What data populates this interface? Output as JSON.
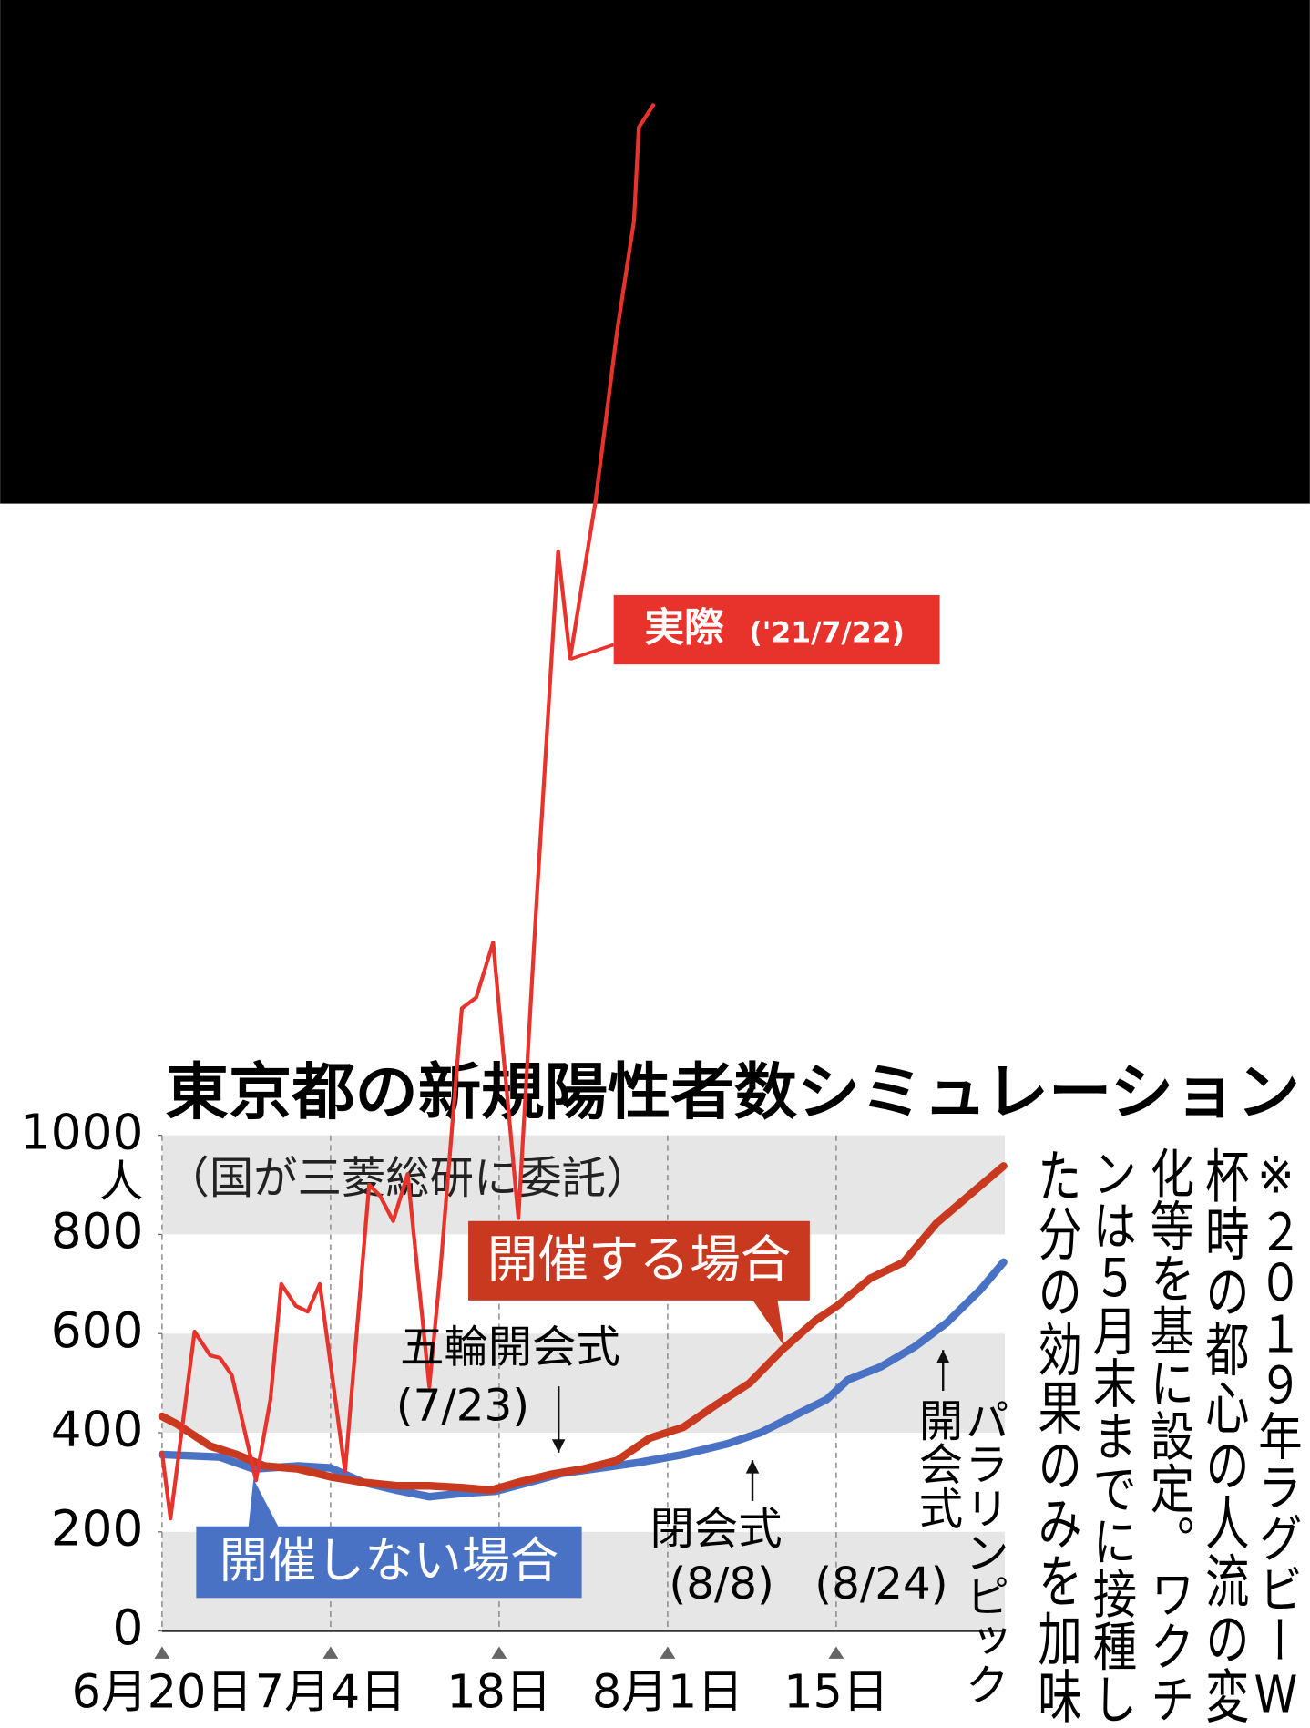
{
  "chart_data": {
    "type": "line",
    "title": "東京都の新規陽性者数シミュレーション",
    "subtitle": "（国が三菱総研に委託）",
    "y_unit": "人",
    "xlim": [
      0,
      70
    ],
    "ylim": [
      0,
      3290
    ],
    "xticks": [
      {
        "value": 0,
        "label": "6月20日"
      },
      {
        "value": 14,
        "label": "7月4日"
      },
      {
        "value": 28,
        "label": "18日"
      },
      {
        "value": 42,
        "label": "8月1日"
      },
      {
        "value": 56,
        "label": "15日"
      }
    ],
    "yticks": [
      0,
      200,
      400,
      600,
      800,
      1000
    ],
    "series": [
      {
        "name": "開催する場合",
        "color": "#c8391f",
        "x": [
          0,
          1.2,
          4,
          6.2,
          8.5,
          11.3,
          14,
          16.7,
          19.5,
          22.2,
          25,
          27.3,
          29.6,
          32.3,
          35,
          37.8,
          40.5,
          43.3,
          46,
          48.8,
          51.5,
          54.3,
          56.1,
          58.8,
          61.6,
          64.3,
          67,
          69.9
        ],
        "values": [
          433,
          418,
          373,
          356,
          333,
          327,
          311,
          300,
          293,
          293,
          289,
          284,
          300,
          316,
          327,
          344,
          389,
          411,
          456,
          500,
          567,
          627,
          656,
          711,
          744,
          822,
          878,
          938
        ]
      },
      {
        "name": "開催しない場合",
        "color": "#4a72c4",
        "x": [
          0,
          4.8,
          7.6,
          11.3,
          14,
          16.7,
          19.5,
          22.2,
          25,
          27.7,
          30.5,
          33.2,
          35.9,
          39.6,
          43.3,
          47,
          49.7,
          52.4,
          55.2,
          57,
          59.7,
          62.5,
          65.2,
          68,
          69.9
        ],
        "values": [
          356,
          351,
          327,
          333,
          329,
          300,
          284,
          271,
          278,
          282,
          300,
          318,
          327,
          340,
          356,
          378,
          400,
          433,
          467,
          507,
          533,
          573,
          622,
          689,
          744
        ]
      },
      {
        "name": "実際",
        "color": "#e8322c",
        "x": [
          0,
          0.7,
          2.7,
          4,
          4.8,
          5.8,
          7.8,
          9,
          9.9,
          11.1,
          12.1,
          13.1,
          15.2,
          17.2,
          18.1,
          19.2,
          20.4,
          22.2,
          23.1,
          24.9,
          26.1,
          27.5,
          29.6,
          31.1,
          32.9,
          33.9,
          36,
          37.8,
          39.2,
          39.6,
          40.8
        ],
        "values": [
          360,
          227,
          604,
          556,
          551,
          516,
          304,
          467,
          700,
          656,
          644,
          700,
          322,
          900,
          878,
          827,
          922,
          493,
          722,
          1256,
          1278,
          1389,
          833,
          1467,
          2178,
          1962,
          2278,
          2622,
          2844,
          3033,
          3078
        ]
      }
    ],
    "actual_date": "('21/7/22)",
    "annotations": [
      "五輪開会式",
      "(7/23)",
      "閉会式",
      "(8/8)",
      "(8/24)",
      "開会式",
      "パラリンピック"
    ],
    "note": [
      "※２０１９年ラグビーW",
      "杯時の都心の人流の変",
      "化等を基に設定。ワクチ",
      "ンは５月末までに接種し",
      "た分の効果のみを加味"
    ]
  }
}
